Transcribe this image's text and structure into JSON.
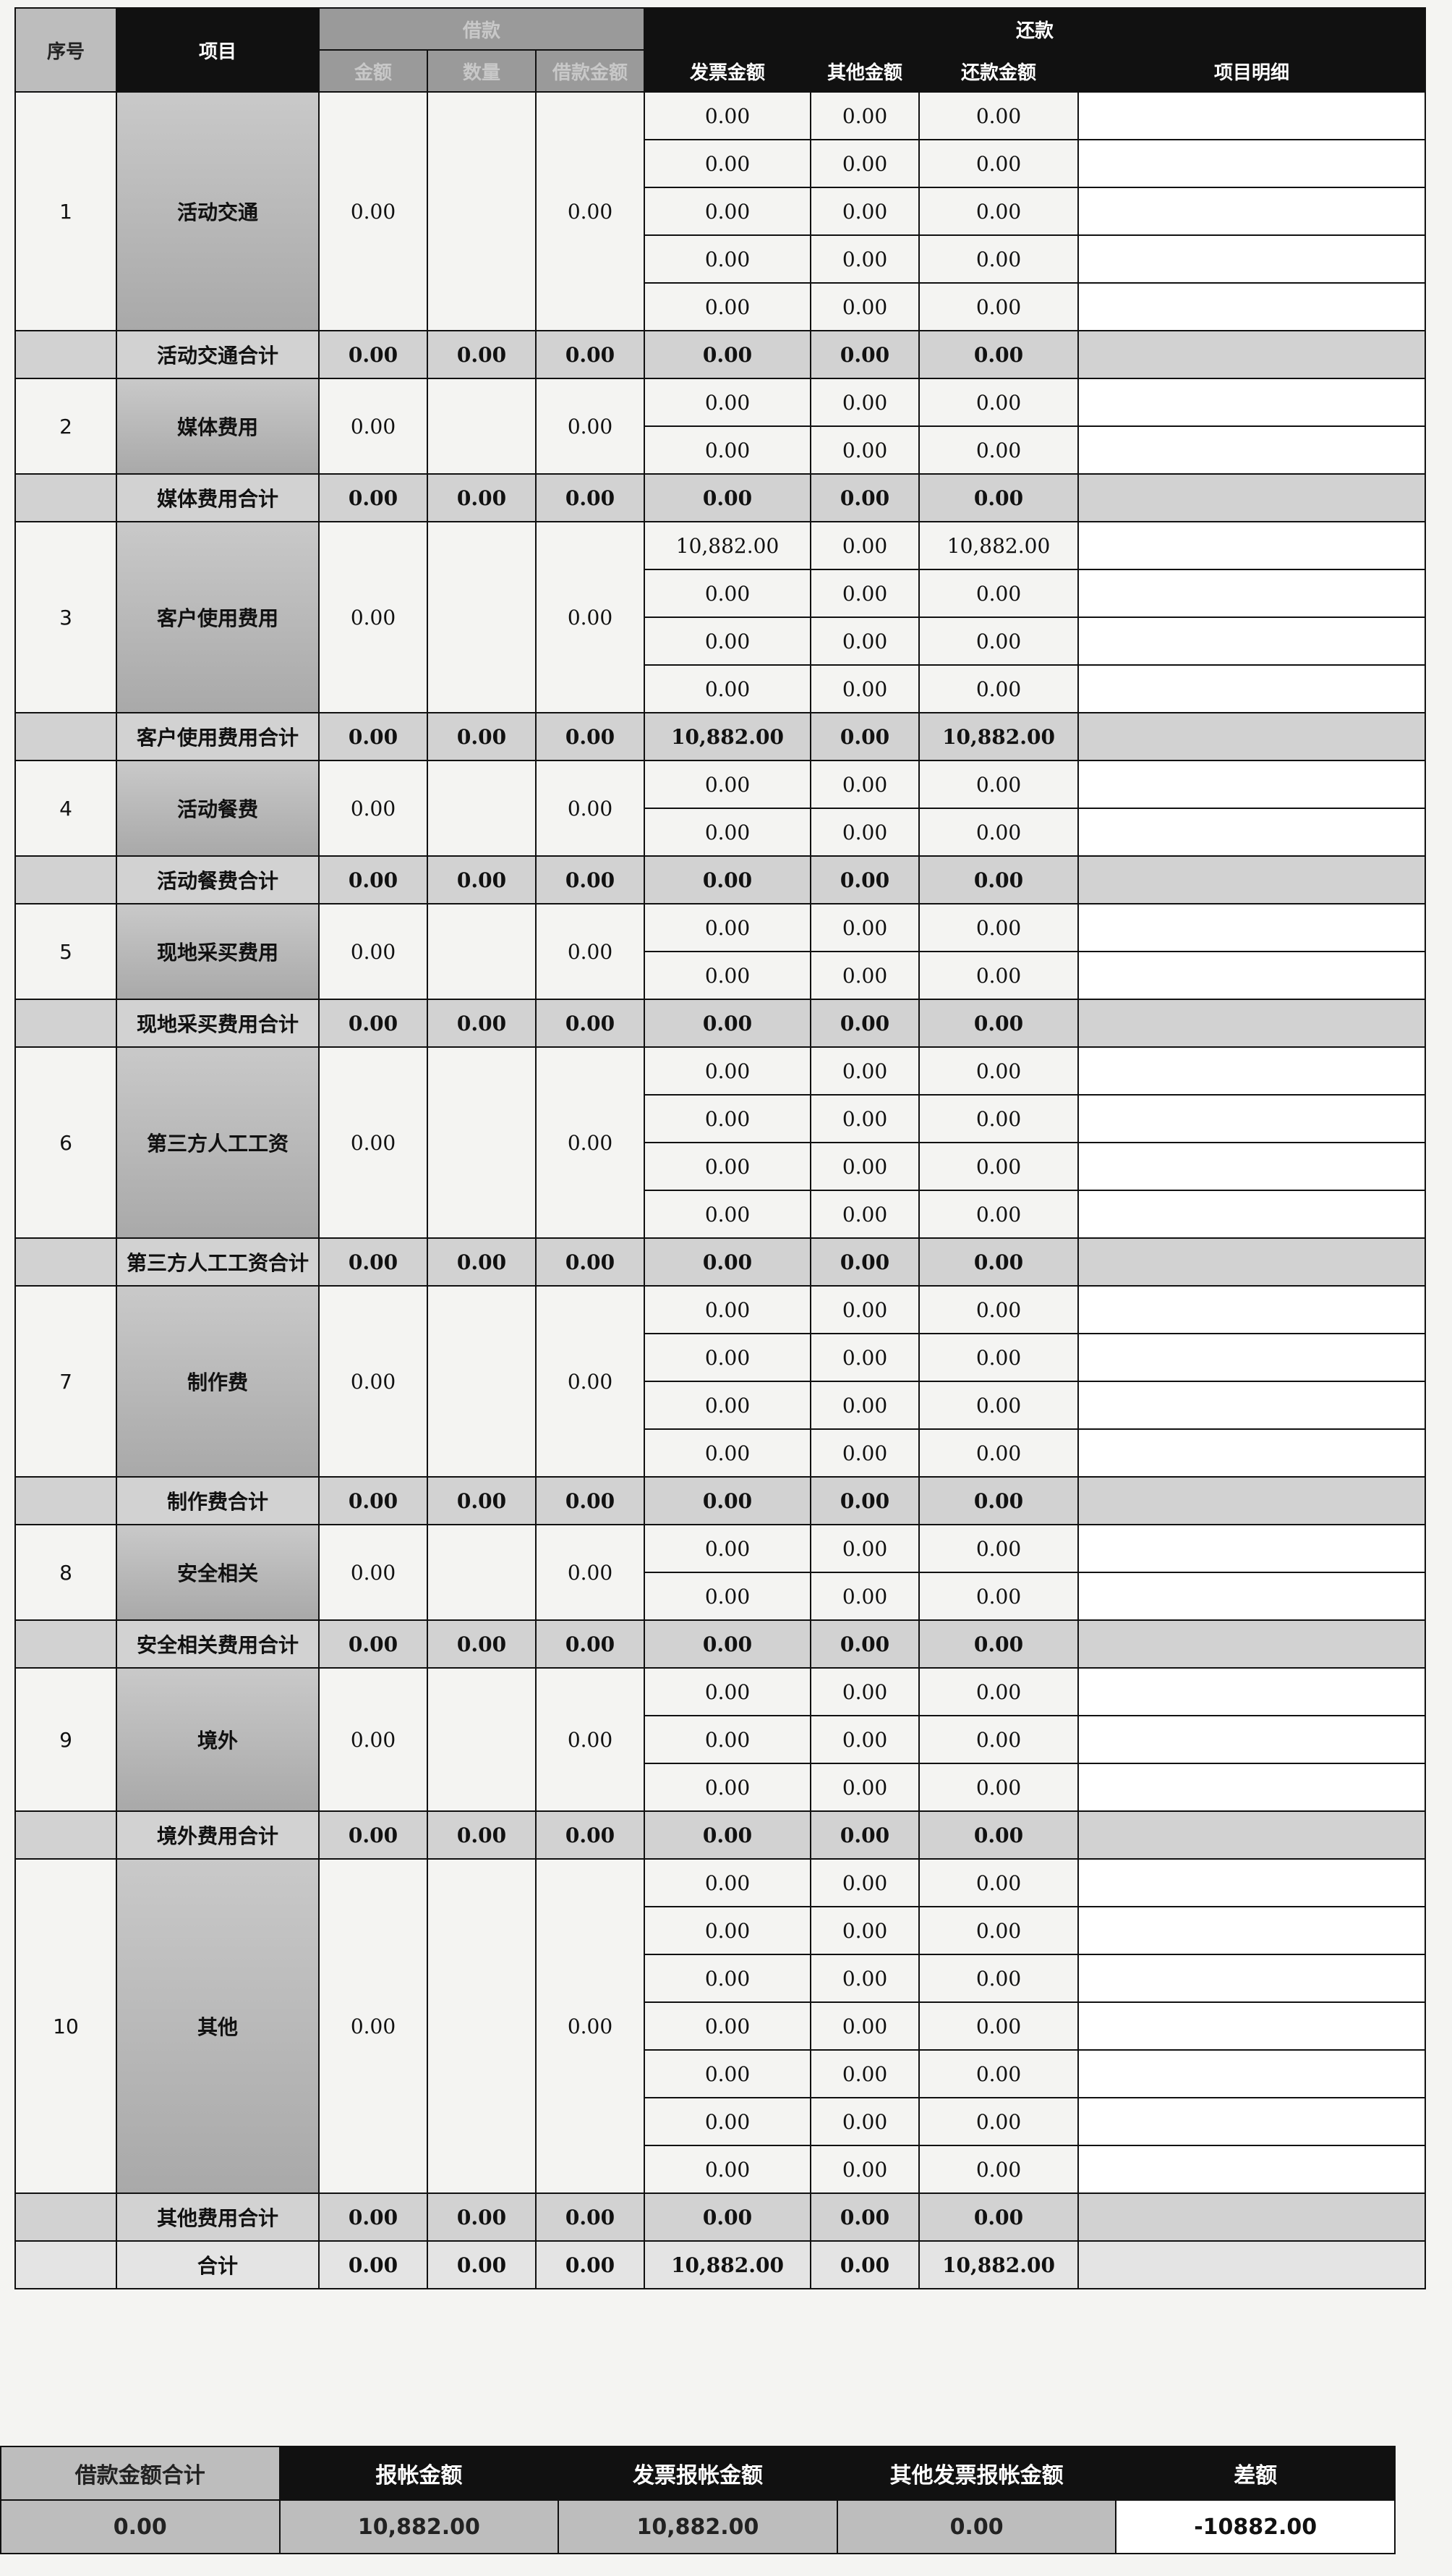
{
  "header": {
    "no": "序号",
    "item": "项目",
    "loan": "借款",
    "repay": "还款",
    "columns": [
      "金额",
      "数量",
      "借款金额",
      "发票金额",
      "其他金额",
      "还款金额",
      "项目明细"
    ]
  },
  "table": {
    "groups": [
      {
        "no": "1",
        "name": "活动交通",
        "amount": "0.00",
        "loan_amount": "0.00",
        "rows": [
          [
            "0.00",
            "0.00",
            "0.00"
          ],
          [
            "0.00",
            "0.00",
            "0.00"
          ],
          [
            "0.00",
            "0.00",
            "0.00"
          ],
          [
            "0.00",
            "0.00",
            "0.00"
          ],
          [
            "0.00",
            "0.00",
            "0.00"
          ]
        ],
        "subtotal": [
          "活动交通合计",
          "0.00",
          "0.00",
          "0.00",
          "0.00",
          "0.00",
          "0.00"
        ]
      },
      {
        "no": "2",
        "name": "媒体费用",
        "amount": "0.00",
        "loan_amount": "0.00",
        "rows": [
          [
            "0.00",
            "0.00",
            "0.00"
          ],
          [
            "0.00",
            "0.00",
            "0.00"
          ]
        ],
        "subtotal": [
          "媒体费用合计",
          "0.00",
          "0.00",
          "0.00",
          "0.00",
          "0.00",
          "0.00"
        ]
      },
      {
        "no": "3",
        "name": "客户使用费用",
        "amount": "0.00",
        "loan_amount": "0.00",
        "rows": [
          [
            "10,882.00",
            "0.00",
            "10,882.00"
          ],
          [
            "0.00",
            "0.00",
            "0.00"
          ],
          [
            "0.00",
            "0.00",
            "0.00"
          ],
          [
            "0.00",
            "0.00",
            "0.00"
          ]
        ],
        "subtotal": [
          "客户使用费用合计",
          "0.00",
          "0.00",
          "0.00",
          "10,882.00",
          "0.00",
          "10,882.00"
        ]
      },
      {
        "no": "4",
        "name": "活动餐费",
        "amount": "0.00",
        "loan_amount": "0.00",
        "rows": [
          [
            "0.00",
            "0.00",
            "0.00"
          ],
          [
            "0.00",
            "0.00",
            "0.00"
          ]
        ],
        "subtotal": [
          "活动餐费合计",
          "0.00",
          "0.00",
          "0.00",
          "0.00",
          "0.00",
          "0.00"
        ]
      },
      {
        "no": "5",
        "name": "现地采买费用",
        "amount": "0.00",
        "loan_amount": "0.00",
        "rows": [
          [
            "0.00",
            "0.00",
            "0.00"
          ],
          [
            "0.00",
            "0.00",
            "0.00"
          ]
        ],
        "subtotal": [
          "现地采买费用合计",
          "0.00",
          "0.00",
          "0.00",
          "0.00",
          "0.00",
          "0.00"
        ]
      },
      {
        "no": "6",
        "name": "第三方人工工资",
        "amount": "0.00",
        "loan_amount": "0.00",
        "rows": [
          [
            "0.00",
            "0.00",
            "0.00"
          ],
          [
            "0.00",
            "0.00",
            "0.00"
          ],
          [
            "0.00",
            "0.00",
            "0.00"
          ],
          [
            "0.00",
            "0.00",
            "0.00"
          ]
        ],
        "subtotal": [
          "第三方人工工资合计",
          "0.00",
          "0.00",
          "0.00",
          "0.00",
          "0.00",
          "0.00"
        ]
      },
      {
        "no": "7",
        "name": "制作费",
        "amount": "0.00",
        "loan_amount": "0.00",
        "rows": [
          [
            "0.00",
            "0.00",
            "0.00"
          ],
          [
            "0.00",
            "0.00",
            "0.00"
          ],
          [
            "0.00",
            "0.00",
            "0.00"
          ],
          [
            "0.00",
            "0.00",
            "0.00"
          ]
        ],
        "subtotal": [
          "制作费合计",
          "0.00",
          "0.00",
          "0.00",
          "0.00",
          "0.00",
          "0.00"
        ]
      },
      {
        "no": "8",
        "name": "安全相关",
        "amount": "0.00",
        "loan_amount": "0.00",
        "rows": [
          [
            "0.00",
            "0.00",
            "0.00"
          ],
          [
            "0.00",
            "0.00",
            "0.00"
          ]
        ],
        "subtotal": [
          "安全相关费用合计",
          "0.00",
          "0.00",
          "0.00",
          "0.00",
          "0.00",
          "0.00"
        ]
      },
      {
        "no": "9",
        "name": "境外",
        "amount": "0.00",
        "loan_amount": "0.00",
        "rows": [
          [
            "0.00",
            "0.00",
            "0.00"
          ],
          [
            "0.00",
            "0.00",
            "0.00"
          ],
          [
            "0.00",
            "0.00",
            "0.00"
          ]
        ],
        "subtotal": [
          "境外费用合计",
          "0.00",
          "0.00",
          "0.00",
          "0.00",
          "0.00",
          "0.00"
        ]
      },
      {
        "no": "10",
        "name": "其他",
        "amount": "0.00",
        "loan_amount": "0.00",
        "rows": [
          [
            "0.00",
            "0.00",
            "0.00"
          ],
          [
            "0.00",
            "0.00",
            "0.00"
          ],
          [
            "0.00",
            "0.00",
            "0.00"
          ],
          [
            "0.00",
            "0.00",
            "0.00"
          ],
          [
            "0.00",
            "0.00",
            "0.00"
          ],
          [
            "0.00",
            "0.00",
            "0.00"
          ],
          [
            "0.00",
            "0.00",
            "0.00"
          ]
        ],
        "subtotal": [
          "其他费用合计",
          "0.00",
          "0.00",
          "0.00",
          "0.00",
          "0.00",
          "0.00"
        ]
      }
    ],
    "total": [
      "合计",
      "0.00",
      "0.00",
      "0.00",
      "10,882.00",
      "0.00",
      "10,882.00"
    ]
  },
  "summary": {
    "headers": [
      "借款金额合计",
      "报帐金额",
      "发票报帐金额",
      "其他发票报帐金额",
      "差额"
    ],
    "values": [
      "0.00",
      "10,882.00",
      "10,882.00",
      "0.00",
      "-10882.00"
    ]
  }
}
